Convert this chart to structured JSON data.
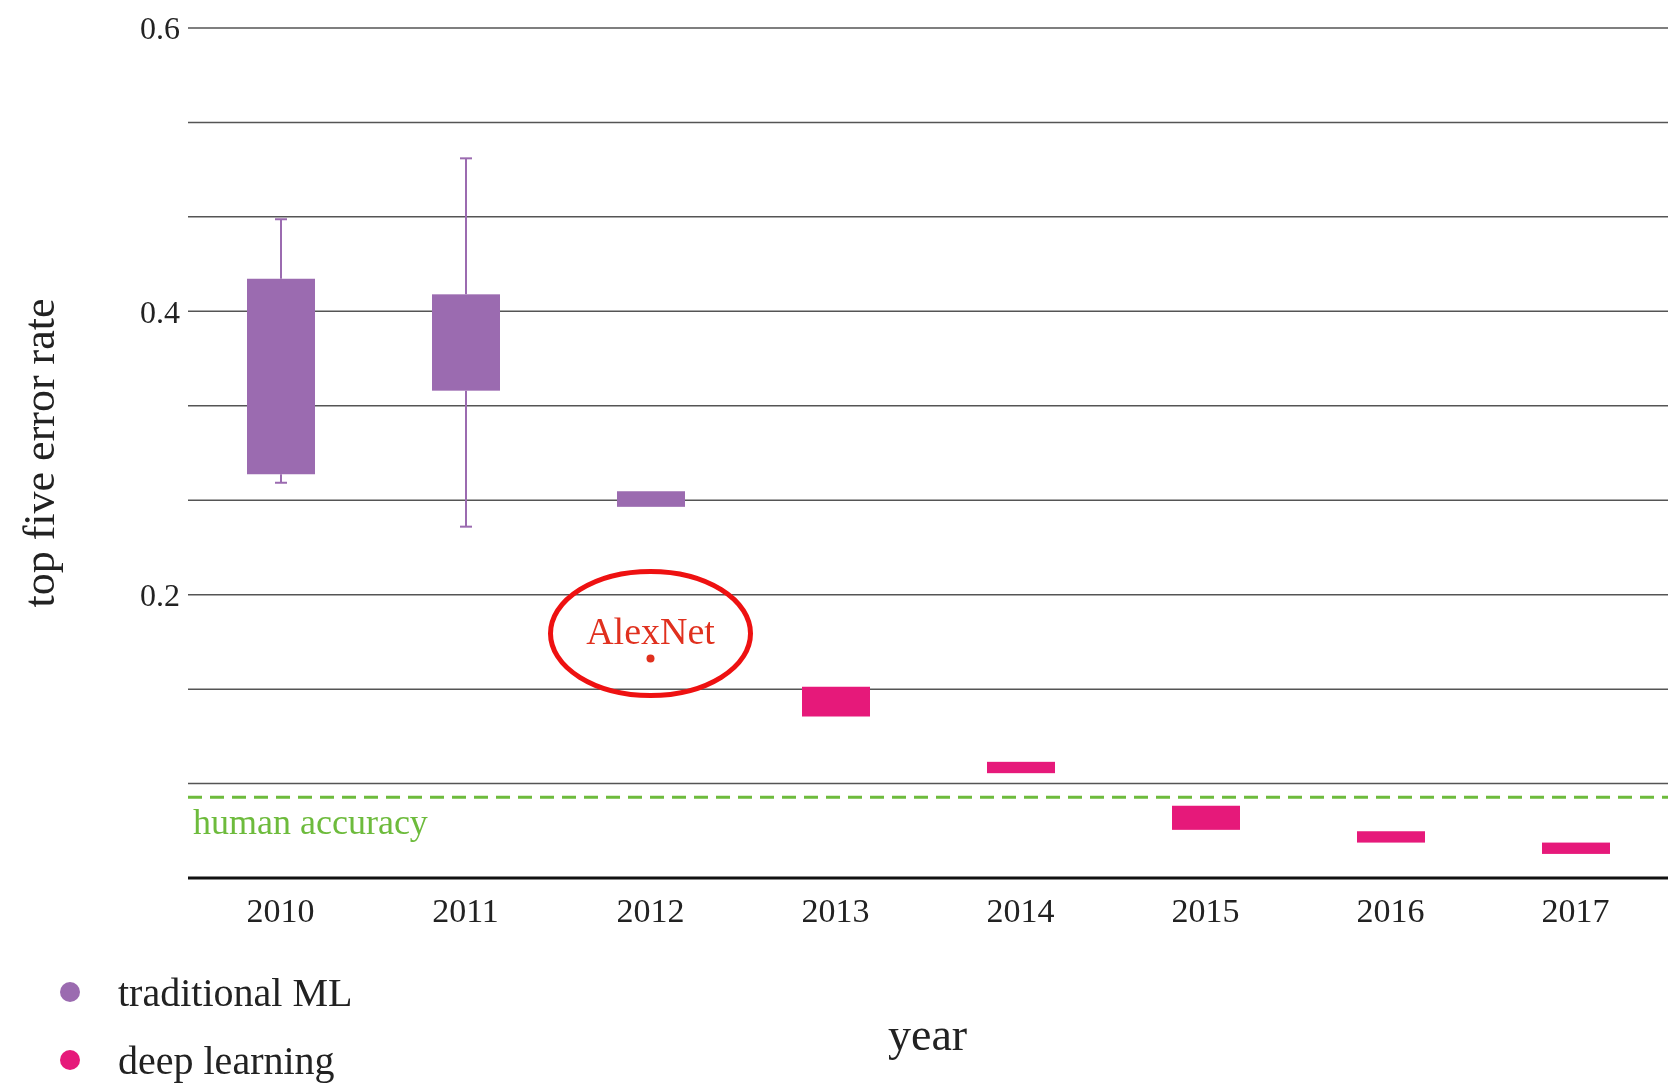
{
  "chart_data": {
    "type": "bar",
    "xlabel": "year",
    "ylabel": "top five error rate",
    "categories": [
      "2010",
      "2011",
      "2012",
      "2013",
      "2014",
      "2015",
      "2016",
      "2017"
    ],
    "series": [
      {
        "name": "traditional ML",
        "color": "#9b6bb0",
        "base": [
          0.285,
          0.344,
          0.262,
          null,
          null,
          null,
          null,
          null
        ],
        "values": [
          0.138,
          0.068,
          0.011,
          null,
          null,
          null,
          null,
          null
        ],
        "errors": [
          [
            0.279,
            0.465
          ],
          [
            0.248,
            0.508
          ],
          null,
          null,
          null,
          null,
          null,
          null
        ]
      },
      {
        "name": "deep learning",
        "color": "#e6197a",
        "base": [
          null,
          null,
          null,
          0.114,
          0.074,
          0.034,
          0.025,
          0.017
        ],
        "values": [
          null,
          null,
          null,
          0.021,
          0.008,
          0.017,
          0.008,
          0.008
        ]
      }
    ],
    "ylim": [
      0,
      0.6
    ],
    "yticks": [
      {
        "value": 0,
        "label": null
      },
      {
        "value": 0.0667,
        "label": null
      },
      {
        "value": 0.1333,
        "label": null
      },
      0.2,
      {
        "value": 0.2667,
        "label": null
      },
      {
        "value": 0.3333,
        "label": null
      },
      0.4,
      {
        "value": 0.4667,
        "label": null
      },
      {
        "value": 0.5333,
        "label": null
      },
      0.6
    ],
    "grid": "y",
    "legend": "bottom left",
    "ref_lines": [
      {
        "axis": "y",
        "value": 0.057,
        "label": "human accuracy",
        "color": "#6dbb3c",
        "line_style": "dashed"
      }
    ],
    "annotations": [
      {
        "text": "AlexNet",
        "x": "2012",
        "y": 0.155
      }
    ]
  }
}
